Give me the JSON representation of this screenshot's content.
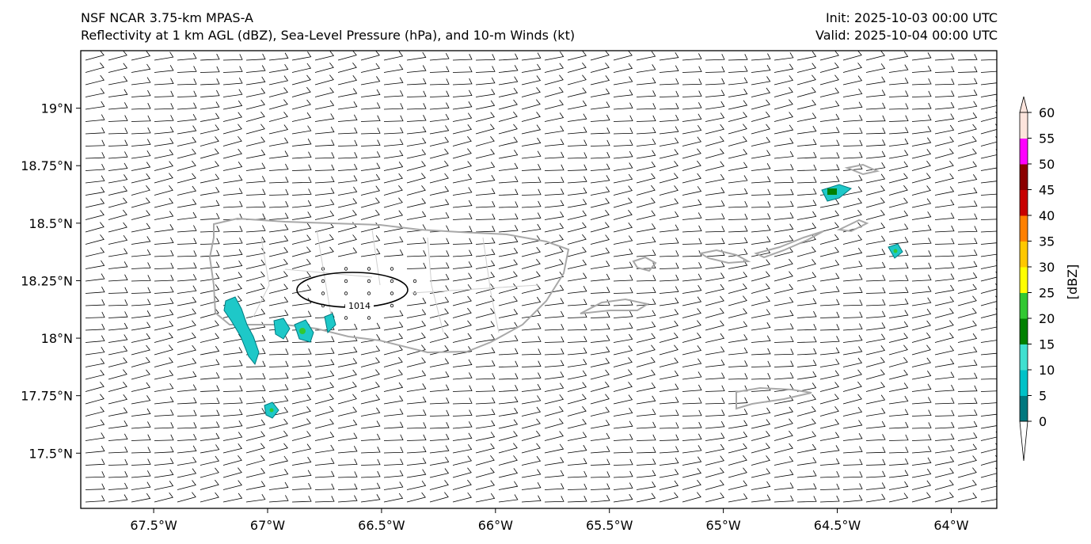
{
  "title": {
    "model": "NSF NCAR 3.75-km MPAS-A",
    "fields": "Reflectivity at 1 km AGL (dBZ), Sea-Level Pressure (hPa), and 10-m Winds (kt)",
    "init": "Init: 2025-10-03 00:00 UTC",
    "valid": "Valid: 2025-10-04 00:00 UTC"
  },
  "map": {
    "lon_range": [
      -67.82,
      -63.8
    ],
    "lat_range": [
      17.26,
      19.25
    ],
    "x_ticks": [
      {
        "lon": -67.5,
        "label": "67.5°W"
      },
      {
        "lon": -67.0,
        "label": "67°W"
      },
      {
        "lon": -66.5,
        "label": "66.5°W"
      },
      {
        "lon": -66.0,
        "label": "66°W"
      },
      {
        "lon": -65.5,
        "label": "65.5°W"
      },
      {
        "lon": -65.0,
        "label": "65°W"
      },
      {
        "lon": -64.5,
        "label": "64.5°W"
      },
      {
        "lon": -64.0,
        "label": "64°W"
      }
    ],
    "y_ticks": [
      {
        "lat": 17.5,
        "label": "17.5°N"
      },
      {
        "lat": 17.75,
        "label": "17.75°N"
      },
      {
        "lat": 18.0,
        "label": "18°N"
      },
      {
        "lat": 18.25,
        "label": "18.25°N"
      },
      {
        "lat": 18.5,
        "label": "18.5°N"
      },
      {
        "lat": 18.75,
        "label": "18.75°N"
      },
      {
        "lat": 19.0,
        "label": "19°N"
      }
    ],
    "slp_contour": {
      "value_label": "1014",
      "center_lon": -66.45,
      "center_lat": 18.2
    },
    "coastline_color": "#a8a8a8",
    "wind": "easterly ~15 kt",
    "colorbar": {
      "label": "[dBZ]",
      "ticks": [
        "0",
        "5",
        "10",
        "15",
        "20",
        "25",
        "30",
        "35",
        "40",
        "45",
        "50",
        "55",
        "60"
      ],
      "colors": [
        "#00787f",
        "#00c2c8",
        "#40e0d0",
        "#008000",
        "#32c832",
        "#ffff00",
        "#ffc800",
        "#ff8000",
        "#c80000",
        "#8b0000",
        "#ff00ff",
        "#fde4dc"
      ]
    }
  }
}
